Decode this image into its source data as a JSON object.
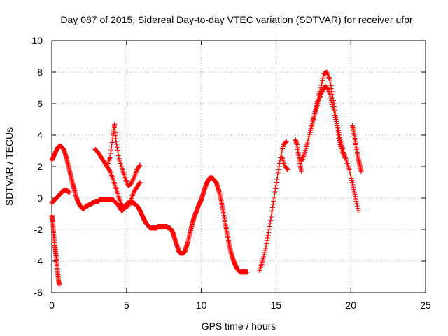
{
  "chart_data": {
    "type": "scatter",
    "title": "Day 087 of 2015, Sidereal Day-to-day VTEC variation (SDTVAR) for receiver ufpr",
    "xlabel": "GPS time / hours",
    "ylabel": "SDTVAR / TECUs",
    "xlim": [
      0,
      25
    ],
    "ylim": [
      -6,
      10
    ],
    "x_ticks": [
      "0",
      "5",
      "10",
      "15",
      "20",
      "25"
    ],
    "y_ticks": [
      "-6",
      "-4",
      "-2",
      "0",
      "2",
      "4",
      "6",
      "8",
      "10"
    ],
    "grid": true,
    "marker": "plus",
    "color": "#ff0000",
    "series": [
      {
        "x": [
          0.0,
          0.1,
          0.2,
          0.3,
          0.4,
          0.5,
          0.6,
          0.7,
          0.8,
          0.9,
          1.0,
          1.1,
          1.2,
          1.3,
          1.4,
          1.5,
          1.6,
          1.7,
          1.8,
          1.9,
          2.0,
          2.1,
          2.2,
          2.3,
          2.4,
          2.5,
          2.6,
          2.7,
          2.8,
          2.9,
          3.0,
          3.1,
          3.2,
          3.3,
          3.4,
          3.5,
          3.6,
          3.7,
          3.8,
          3.9,
          4.0,
          4.1,
          4.2,
          4.3,
          4.4,
          4.5,
          4.6,
          4.7,
          4.8,
          4.9,
          5.0,
          5.1,
          5.2,
          5.3,
          5.4,
          5.5,
          5.6,
          5.7,
          5.8,
          5.9,
          6.0,
          6.1,
          6.2,
          6.3,
          6.4,
          6.5,
          6.6,
          6.7,
          6.8,
          6.9,
          7.0,
          7.1,
          7.2,
          7.3,
          7.4,
          7.5,
          7.6,
          7.7,
          7.8,
          7.9,
          8.0,
          8.1,
          8.2,
          8.3,
          8.4,
          8.5,
          8.6,
          8.7,
          8.8,
          8.9,
          9.0,
          9.1,
          9.2,
          9.3,
          9.4,
          9.5,
          9.6,
          9.7,
          9.8,
          9.9,
          10.0,
          10.1,
          10.2,
          10.3,
          10.4,
          10.5,
          10.6,
          10.7,
          10.8,
          10.9,
          11.0,
          11.1,
          11.2,
          11.3,
          11.4,
          11.5,
          11.6,
          11.7,
          11.8,
          11.9,
          12.0,
          12.1,
          12.2,
          12.3,
          12.4,
          12.5,
          12.6,
          12.7,
          12.8,
          12.9,
          13.0,
          13.1
        ],
        "y": [
          2.4,
          2.6,
          2.8,
          3.0,
          3.2,
          3.3,
          3.3,
          3.2,
          3.1,
          2.8,
          2.5,
          2.1,
          1.7,
          1.3,
          0.9,
          0.6,
          0.2,
          -0.1,
          -0.3,
          -0.5,
          -0.6,
          -0.7,
          -0.6,
          -0.5,
          -0.5,
          -0.4,
          -0.4,
          -0.3,
          -0.3,
          -0.2,
          -0.2,
          -0.2,
          -0.1,
          -0.1,
          -0.1,
          -0.1,
          -0.1,
          -0.1,
          -0.1,
          -0.1,
          -0.1,
          -0.1,
          -0.2,
          -0.3,
          -0.4,
          -0.5,
          -0.7,
          -0.8,
          -0.7,
          -0.5,
          -0.4,
          -0.3,
          -0.3,
          -0.3,
          -0.3,
          -0.3,
          -0.4,
          -0.5,
          -0.6,
          -0.8,
          -1.0,
          -1.2,
          -1.4,
          -1.6,
          -1.7,
          -1.8,
          -1.9,
          -1.9,
          -1.9,
          -1.9,
          -1.9,
          -1.8,
          -1.8,
          -1.8,
          -1.8,
          -1.8,
          -1.8,
          -1.8,
          -1.9,
          -1.9,
          -2.0,
          -2.2,
          -2.5,
          -2.8,
          -3.1,
          -3.4,
          -3.5,
          -3.5,
          -3.5,
          -3.4,
          -3.1,
          -2.8,
          -2.4,
          -2.0,
          -1.6,
          -1.3,
          -1.0,
          -0.8,
          -0.5,
          -0.3,
          -0.1,
          0.2,
          0.5,
          0.8,
          1.0,
          1.2,
          1.3,
          1.3,
          1.2,
          1.1,
          1.0,
          0.7,
          0.4,
          0.0,
          -0.5,
          -1.0,
          -1.6,
          -2.1,
          -2.6,
          -3.1,
          -3.5,
          -3.8,
          -4.1,
          -4.3,
          -4.5,
          -4.6,
          -4.7,
          -4.7,
          -4.7,
          -4.7,
          -4.7,
          -4.7
        ]
      },
      {
        "x": [
          0.0,
          0.1,
          0.2,
          0.3,
          0.4,
          0.5,
          0.6,
          0.7,
          0.8,
          0.9,
          1.0,
          1.1,
          1.2
        ],
        "y": [
          -0.3,
          -0.2,
          -0.1,
          0.0,
          0.1,
          0.2,
          0.3,
          0.4,
          0.5,
          0.5,
          0.5,
          0.4,
          0.4
        ]
      },
      {
        "x": [
          0.0,
          0.05,
          0.1,
          0.15,
          0.2,
          0.25,
          0.3,
          0.35,
          0.4,
          0.45,
          0.5
        ],
        "y": [
          -1.1,
          -1.4,
          -1.9,
          -2.5,
          -3.0,
          -3.4,
          -3.8,
          -4.3,
          -4.8,
          -5.2,
          -5.5
        ]
      },
      {
        "x": [
          2.9,
          3.1,
          3.3,
          3.5,
          3.7,
          3.9,
          4.1,
          4.3,
          4.5,
          4.7,
          4.9,
          5.1,
          5.3,
          5.5,
          5.7,
          5.9
        ],
        "y": [
          3.1,
          2.9,
          2.6,
          2.3,
          2.0,
          1.7,
          1.2,
          0.6,
          0.0,
          -0.5,
          -0.6,
          -0.5,
          -0.1,
          0.4,
          0.7,
          1.0
        ]
      },
      {
        "x": [
          3.7,
          3.9,
          4.1,
          4.2,
          4.3,
          4.5,
          4.7,
          4.9,
          5.1,
          5.3,
          5.5,
          5.7,
          5.9
        ],
        "y": [
          2.0,
          2.6,
          4.0,
          4.7,
          3.6,
          2.5,
          1.9,
          1.3,
          0.8,
          0.9,
          1.3,
          1.8,
          2.1
        ]
      },
      {
        "x": [
          13.9,
          14.1,
          14.3,
          14.5,
          14.7,
          14.9,
          15.1,
          15.3,
          15.5,
          15.7
        ],
        "y": [
          -4.6,
          -4.0,
          -3.2,
          -2.2,
          -1.0,
          0.2,
          1.4,
          2.6,
          3.4,
          3.6
        ]
      },
      {
        "x": [
          15.4,
          15.6,
          15.8
        ],
        "y": [
          2.6,
          2.0,
          1.8
        ]
      },
      {
        "x": [
          16.3,
          16.4,
          16.5,
          16.6,
          16.7
        ],
        "y": [
          3.7,
          3.4,
          2.8,
          2.2,
          1.7
        ]
      },
      {
        "x": [
          16.7,
          16.9,
          17.1,
          17.3,
          17.5,
          17.7,
          17.9,
          18.1,
          18.3,
          18.5,
          18.7,
          18.9,
          19.1,
          19.3,
          19.5,
          19.7,
          19.9,
          20.1,
          20.3,
          20.5
        ],
        "y": [
          2.3,
          2.8,
          3.5,
          4.3,
          5.0,
          5.7,
          6.3,
          6.8,
          7.1,
          6.9,
          6.2,
          5.4,
          4.6,
          3.7,
          3.0,
          2.4,
          1.8,
          1.0,
          0.1,
          -0.8
        ]
      },
      {
        "x": [
          17.4,
          17.6,
          17.8,
          18.0,
          18.2,
          18.4,
          18.6,
          18.8,
          19.0,
          19.2,
          19.4,
          19.6
        ],
        "y": [
          4.6,
          5.5,
          6.3,
          7.0,
          7.9,
          8.0,
          7.5,
          6.4,
          5.2,
          3.8,
          3.0,
          2.6
        ]
      },
      {
        "x": [
          20.1,
          20.2,
          20.3,
          20.4,
          20.5,
          20.6,
          20.7
        ],
        "y": [
          4.6,
          4.2,
          3.6,
          3.0,
          2.5,
          2.1,
          1.7
        ]
      }
    ]
  }
}
